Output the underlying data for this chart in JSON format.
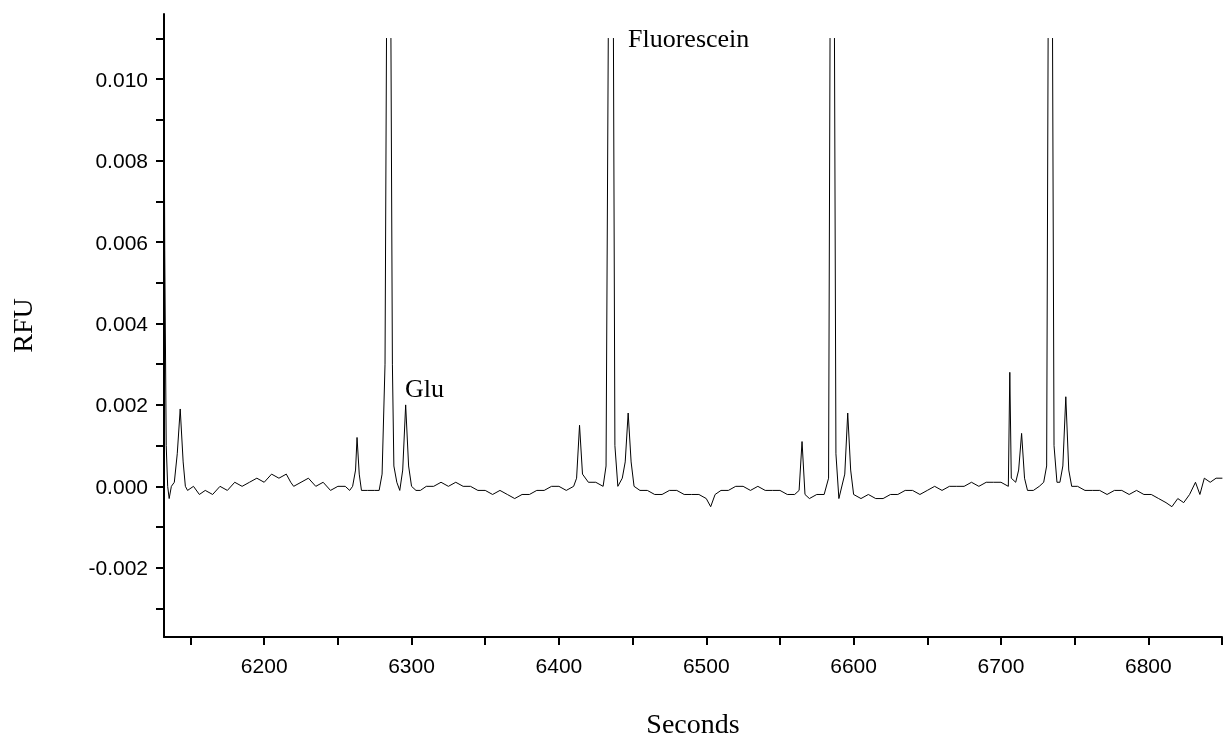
{
  "chart_data": {
    "type": "line",
    "xlabel": "Seconds",
    "ylabel": "RFU",
    "annotations": [
      "Glu",
      "Fluorescein"
    ],
    "xlim": [
      6132,
      6850
    ],
    "ylim": [
      -0.0037,
      0.0116
    ],
    "xticks": [
      {
        "value": 6150,
        "label": null
      },
      6200,
      {
        "value": 6250,
        "label": null
      },
      6300,
      {
        "value": 6350,
        "label": null
      },
      6400,
      {
        "value": 6450,
        "label": null
      },
      6500,
      {
        "value": 6550,
        "label": null
      },
      6600,
      {
        "value": 6650,
        "label": null
      },
      6700,
      {
        "value": 6750,
        "label": null
      },
      6800,
      {
        "value": 6850,
        "label": null
      }
    ],
    "yticks": [
      {
        "value": -0.003,
        "label": null
      },
      {
        "value": -0.002,
        "label": "-0.002"
      },
      {
        "value": -0.001,
        "label": null
      },
      {
        "value": 0,
        "label": "0.000"
      },
      {
        "value": 0.001,
        "label": null
      },
      {
        "value": 0.002,
        "label": "0.002"
      },
      {
        "value": 0.003,
        "label": null
      },
      {
        "value": 0.004,
        "label": "0.004"
      },
      {
        "value": 0.005,
        "label": null
      },
      {
        "value": 0.006,
        "label": "0.006"
      },
      {
        "value": 0.007,
        "label": null
      },
      {
        "value": 0.008,
        "label": "0.008"
      },
      {
        "value": 0.009,
        "label": null
      },
      {
        "value": 0.01,
        "label": "0.010"
      },
      {
        "value": 0.011,
        "label": null
      }
    ],
    "grid": false,
    "marker": "none",
    "line_style": "solid",
    "series": [
      {
        "color": "#000000",
        "x": [
          6132,
          6132.5,
          6133.5,
          6134.5,
          6135.5,
          6137,
          6139,
          6141,
          6143,
          6145,
          6146.5,
          6148,
          6152,
          6156,
          6160,
          6165,
          6170,
          6175,
          6180,
          6185,
          6190,
          6195,
          6200,
          6205,
          6210,
          6215,
          6218,
          6220,
          6225,
          6230,
          6235,
          6240,
          6245,
          6250,
          6255,
          6258,
          6260,
          6262,
          6263,
          6264.5,
          6266,
          6270,
          6275,
          6278,
          6280,
          6282,
          6283,
          6284.5,
          6286,
          6287,
          6288,
          6290,
          6292,
          6294,
          6296,
          6298,
          6300,
          6303,
          6306,
          6310,
          6315,
          6320,
          6325,
          6330,
          6335,
          6340,
          6345,
          6350,
          6355,
          6360,
          6365,
          6370,
          6375,
          6380,
          6385,
          6390,
          6395,
          6400,
          6405,
          6410,
          6412,
          6414,
          6416,
          6420,
          6425,
          6430,
          6432,
          6433.5,
          6435,
          6437,
          6438,
          6440,
          6443,
          6445,
          6447,
          6449,
          6451,
          6455,
          6460,
          6465,
          6470,
          6475,
          6480,
          6485,
          6490,
          6495,
          6500,
          6503,
          6506,
          6510,
          6515,
          6520,
          6525,
          6530,
          6535,
          6540,
          6545,
          6550,
          6555,
          6560,
          6563,
          6565,
          6567,
          6570,
          6575,
          6580,
          6583,
          6584,
          6585.5,
          6587,
          6588,
          6590,
          6594,
          6596,
          6598,
          6600,
          6605,
          6610,
          6615,
          6620,
          6625,
          6630,
          6635,
          6640,
          6645,
          6650,
          6655,
          6660,
          6665,
          6670,
          6675,
          6680,
          6685,
          6690,
          6695,
          6700,
          6705,
          6706,
          6707,
          6710,
          6712,
          6714,
          6716,
          6718,
          6722,
          6726,
          6729,
          6731,
          6732,
          6733.5,
          6735,
          6736,
          6738,
          6740,
          6742,
          6744,
          6746,
          6748,
          6752,
          6757,
          6762,
          6767,
          6772,
          6777,
          6782,
          6787,
          6792,
          6797,
          6802,
          6807,
          6812,
          6816,
          6820,
          6824,
          6828,
          6832,
          6835,
          6838,
          6842,
          6846,
          6850
        ],
        "values": [
          0.0107,
          0.0058,
          0.001,
          0,
          -0.0003,
          0,
          0.0001,
          0.0008,
          0.0019,
          0.0006,
          0,
          -0.0001,
          0,
          -0.0002,
          -0.0001,
          -0.0002,
          0,
          -0.0001,
          0.0001,
          0,
          0.0001,
          0.0002,
          0.0001,
          0.0003,
          0.0002,
          0.0003,
          0.0001,
          0,
          0.0001,
          0.0002,
          0,
          0.0001,
          -0.0001,
          0,
          0,
          -0.0001,
          0,
          0.0004,
          0.0012,
          0.0003,
          -0.0001,
          -0.0001,
          -0.0001,
          -0.0001,
          0.0003,
          0.003,
          0.011,
          null,
          0.011,
          0.003,
          0.0005,
          0.0001,
          -0.0001,
          0.0004,
          0.002,
          0.0005,
          0,
          -0.0001,
          -0.0001,
          0,
          0,
          0.0001,
          0,
          0.0001,
          0,
          0,
          -0.0001,
          -0.0001,
          -0.0002,
          -0.0001,
          -0.0002,
          -0.0003,
          -0.0002,
          -0.0002,
          -0.0001,
          -0.0001,
          0,
          0,
          -0.0001,
          0,
          0.0002,
          0.0015,
          0.0003,
          0.0001,
          0.0001,
          0,
          0.0005,
          0.011,
          null,
          0.011,
          0.001,
          0,
          0.0002,
          0.0006,
          0.0018,
          0.0006,
          0,
          -0.0001,
          -0.0001,
          -0.0002,
          -0.0002,
          -0.0001,
          -0.0001,
          -0.0002,
          -0.0002,
          -0.0002,
          -0.0003,
          -0.0005,
          -0.0002,
          -0.0001,
          -0.0001,
          0,
          0,
          -0.0001,
          0,
          -0.0001,
          -0.0001,
          -0.0001,
          -0.0002,
          -0.0002,
          -0.0001,
          0.0011,
          -0.0002,
          -0.0003,
          -0.0002,
          -0.0002,
          0.0002,
          0.011,
          null,
          0.011,
          0.0008,
          -0.0003,
          0.0003,
          0.0018,
          0.0004,
          -0.0002,
          -0.0003,
          -0.0002,
          -0.0003,
          -0.0003,
          -0.0002,
          -0.0002,
          -0.0001,
          -0.0001,
          -0.0002,
          -0.0001,
          0,
          -0.0001,
          0,
          0,
          0,
          0.0001,
          0,
          0.0001,
          0.0001,
          0.0001,
          0,
          0.0028,
          0.0002,
          0.0001,
          0.0004,
          0.0013,
          0.0002,
          -0.0001,
          -0.0001,
          0,
          0.0001,
          0.0005,
          0.011,
          null,
          0.011,
          0.001,
          0.0001,
          0.0001,
          0.0005,
          0.0022,
          0.0004,
          0,
          0,
          -0.0001,
          -0.0001,
          -0.0001,
          -0.0002,
          -0.0001,
          -0.0001,
          -0.0002,
          -0.0001,
          -0.0002,
          -0.0002,
          -0.0003,
          -0.0004,
          -0.0005,
          -0.0003,
          -0.0004,
          -0.0002,
          0.0001,
          -0.0002,
          0.0002,
          0.0001,
          0.0002,
          0.0002
        ]
      }
    ]
  }
}
